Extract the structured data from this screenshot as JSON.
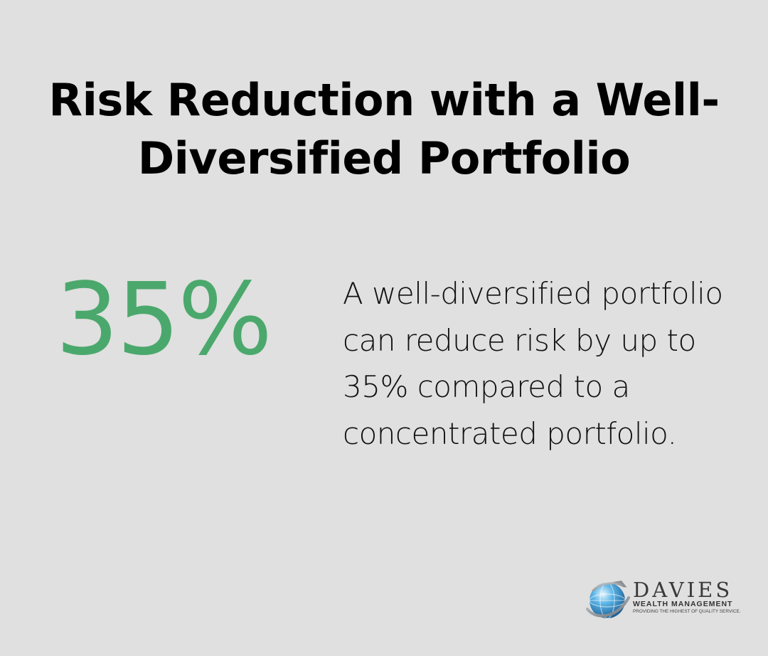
{
  "header": {
    "title": "Risk Reduction with a Well-Diversified Portfolio"
  },
  "statistic": {
    "value": "35%",
    "color": "#4ba86c"
  },
  "description": {
    "text": "A well-diversified portfolio can reduce risk by up to 35% compared to a concentrated portfolio."
  },
  "logo": {
    "name": "DAVIES",
    "subtitle": "WEALTH MANAGEMENT",
    "tagline": "PROVIDING THE HIGHEST OF QUALITY SERVICE.",
    "icon": "globe-icon"
  },
  "colors": {
    "background": "#dfe0df",
    "title": "#000000",
    "accent": "#4ba86c"
  }
}
